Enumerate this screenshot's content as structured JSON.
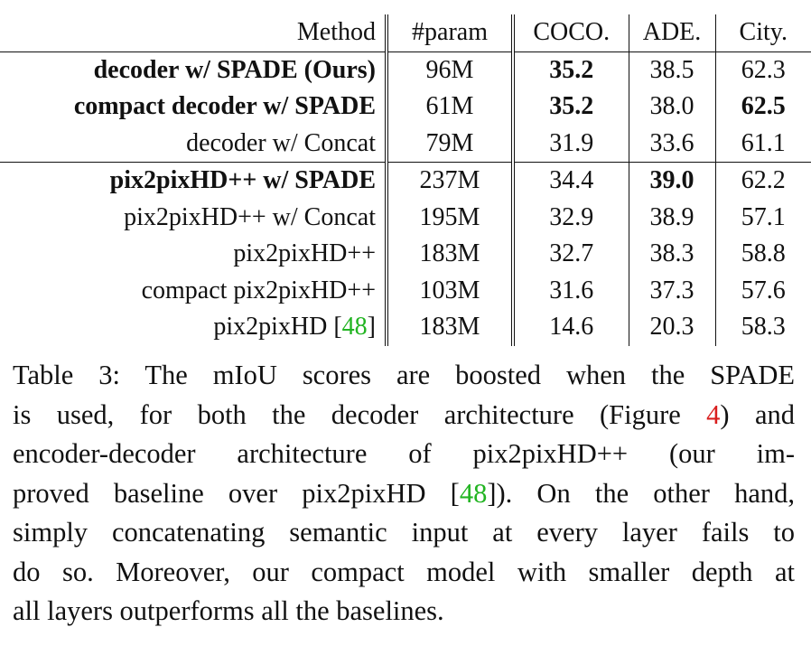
{
  "table": {
    "headers": [
      "Method",
      "#param",
      "COCO.",
      "ADE.",
      "City."
    ],
    "rows": [
      {
        "method": "decoder w/ SPADE (Ours)",
        "param": "96M",
        "coco": "35.2",
        "ade": "38.5",
        "city": "62.3"
      },
      {
        "method": "compact decoder w/ SPADE",
        "param": "61M",
        "coco": "35.2",
        "ade": "38.0",
        "city": "62.5"
      },
      {
        "method": "decoder w/ Concat",
        "param": "79M",
        "coco": "31.9",
        "ade": "33.6",
        "city": "61.1"
      },
      {
        "method": "pix2pixHD++ w/ SPADE",
        "param": "237M",
        "coco": "34.4",
        "ade": "39.0",
        "city": "62.2"
      },
      {
        "method": "pix2pixHD++ w/ Concat",
        "param": "195M",
        "coco": "32.9",
        "ade": "38.9",
        "city": "57.1"
      },
      {
        "method": "pix2pixHD++",
        "param": "183M",
        "coco": "32.7",
        "ade": "38.3",
        "city": "58.8"
      },
      {
        "method": "compact pix2pixHD++",
        "param": "103M",
        "coco": "31.6",
        "ade": "37.3",
        "city": "57.6"
      },
      {
        "method_text": "pix2pixHD [",
        "method_cite": "48",
        "method_close": "]",
        "param": "183M",
        "coco": "14.6",
        "ade": "20.3",
        "city": "58.3"
      }
    ]
  },
  "caption": {
    "l1": "Table 3: The mIoU scores are boosted when the SPADE",
    "l2a": "is used, for both the decoder architecture (Figure ",
    "l2ref": "4",
    "l2b": ") and",
    "l3": "encoder-decoder architecture of pix2pixHD++ (our im-",
    "l4a": "proved baseline over pix2pixHD [",
    "l4ref": "48",
    "l4b": "]). On the other hand,",
    "l5": "simply concatenating semantic input at every layer fails to",
    "l6": "do so. Moreover, our compact model with smaller depth at",
    "l7": "all layers outperforms all the baselines."
  },
  "colors": {
    "citation": "#22b422",
    "figure_ref": "#d91e1e"
  }
}
